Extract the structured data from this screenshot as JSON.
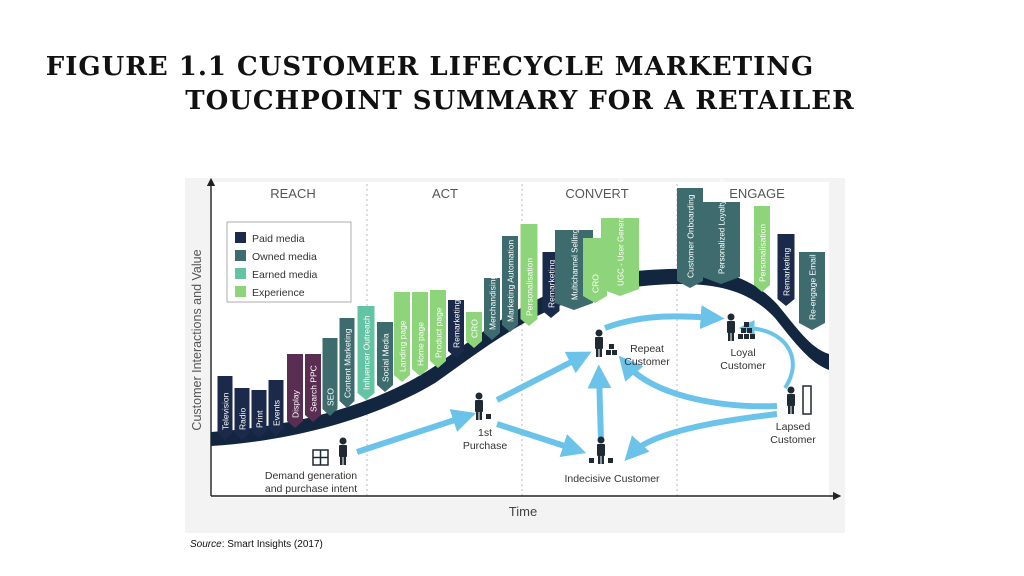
{
  "title": {
    "line1": "FIGURE 1.1 CUSTOMER LIFECYCLE MARKETING",
    "line2": "TOUCHPOINT SUMMARY FOR A RETAILER"
  },
  "source": {
    "label": "Source",
    "text": ": Smart Insights (2017)"
  },
  "diagram": {
    "y_axis_label": "Customer Interactions and Value",
    "x_axis_label": "Time",
    "phases": [
      "REACH",
      "ACT",
      "CONVERT",
      "ENGAGE"
    ],
    "legend": [
      {
        "label": "Paid media",
        "color": "#1b2a4a"
      },
      {
        "label": "Owned media",
        "color": "#3d6b6e"
      },
      {
        "label": "Earned media",
        "color": "#62c4a2"
      },
      {
        "label": "Experience",
        "color": "#8ed47a"
      }
    ],
    "touchpoints": [
      {
        "label": "Television",
        "color": "#1b2a4a"
      },
      {
        "label": "Radio",
        "color": "#1b2a4a"
      },
      {
        "label": "Print",
        "color": "#1b2a4a"
      },
      {
        "label": "Events",
        "color": "#1b2a4a"
      },
      {
        "label": "Display",
        "color": "#5a2d52"
      },
      {
        "label": "Search PPC",
        "color": "#5a2d52"
      },
      {
        "label": "SEO",
        "color": "#3d6b6e"
      },
      {
        "label": "Content Marketing",
        "color": "#3d6b6e"
      },
      {
        "label": "Influencer Outreach",
        "color": "#62c4a2"
      },
      {
        "label": "Social Media",
        "color": "#3d6b6e"
      },
      {
        "label": "Landing page",
        "color": "#8ed47a"
      },
      {
        "label": "Home page",
        "color": "#8ed47a"
      },
      {
        "label": "Product page",
        "color": "#8ed47a"
      },
      {
        "label": "Remarketing",
        "color": "#1b2a4a"
      },
      {
        "label": "CRO",
        "color": "#8ed47a"
      },
      {
        "label": "Merchandising",
        "color": "#3d6b6e"
      },
      {
        "label": "Marketing Automation",
        "color": "#3d6b6e"
      },
      {
        "label": "Personalisation",
        "color": "#8ed47a"
      },
      {
        "label": "Remarketing",
        "color": "#1b2a4a"
      },
      {
        "label": "Multichannel Selling",
        "color": "#3d6b6e"
      },
      {
        "label": "CRO",
        "color": "#8ed47a"
      },
      {
        "label": "UGC - User Generated Content",
        "color": "#8ed47a"
      },
      {
        "label": "Customer Onboarding",
        "color": "#3d6b6e"
      },
      {
        "label": "Personalized Loyalty Program",
        "color": "#3d6b6e"
      },
      {
        "label": "Personalisation",
        "color": "#8ed47a"
      },
      {
        "label": "Remarketing",
        "color": "#1b2a4a"
      },
      {
        "label": "Re-engage Email Program",
        "color": "#3d6b6e"
      }
    ],
    "stages": {
      "demand": "Demand generation and purchase intent",
      "first_purchase": "1st Purchase",
      "repeat": "Repeat Customer",
      "loyal": "Loyal Customer",
      "indecisive": "Indecisive Customer",
      "lapsed": "Lapsed Customer"
    }
  }
}
